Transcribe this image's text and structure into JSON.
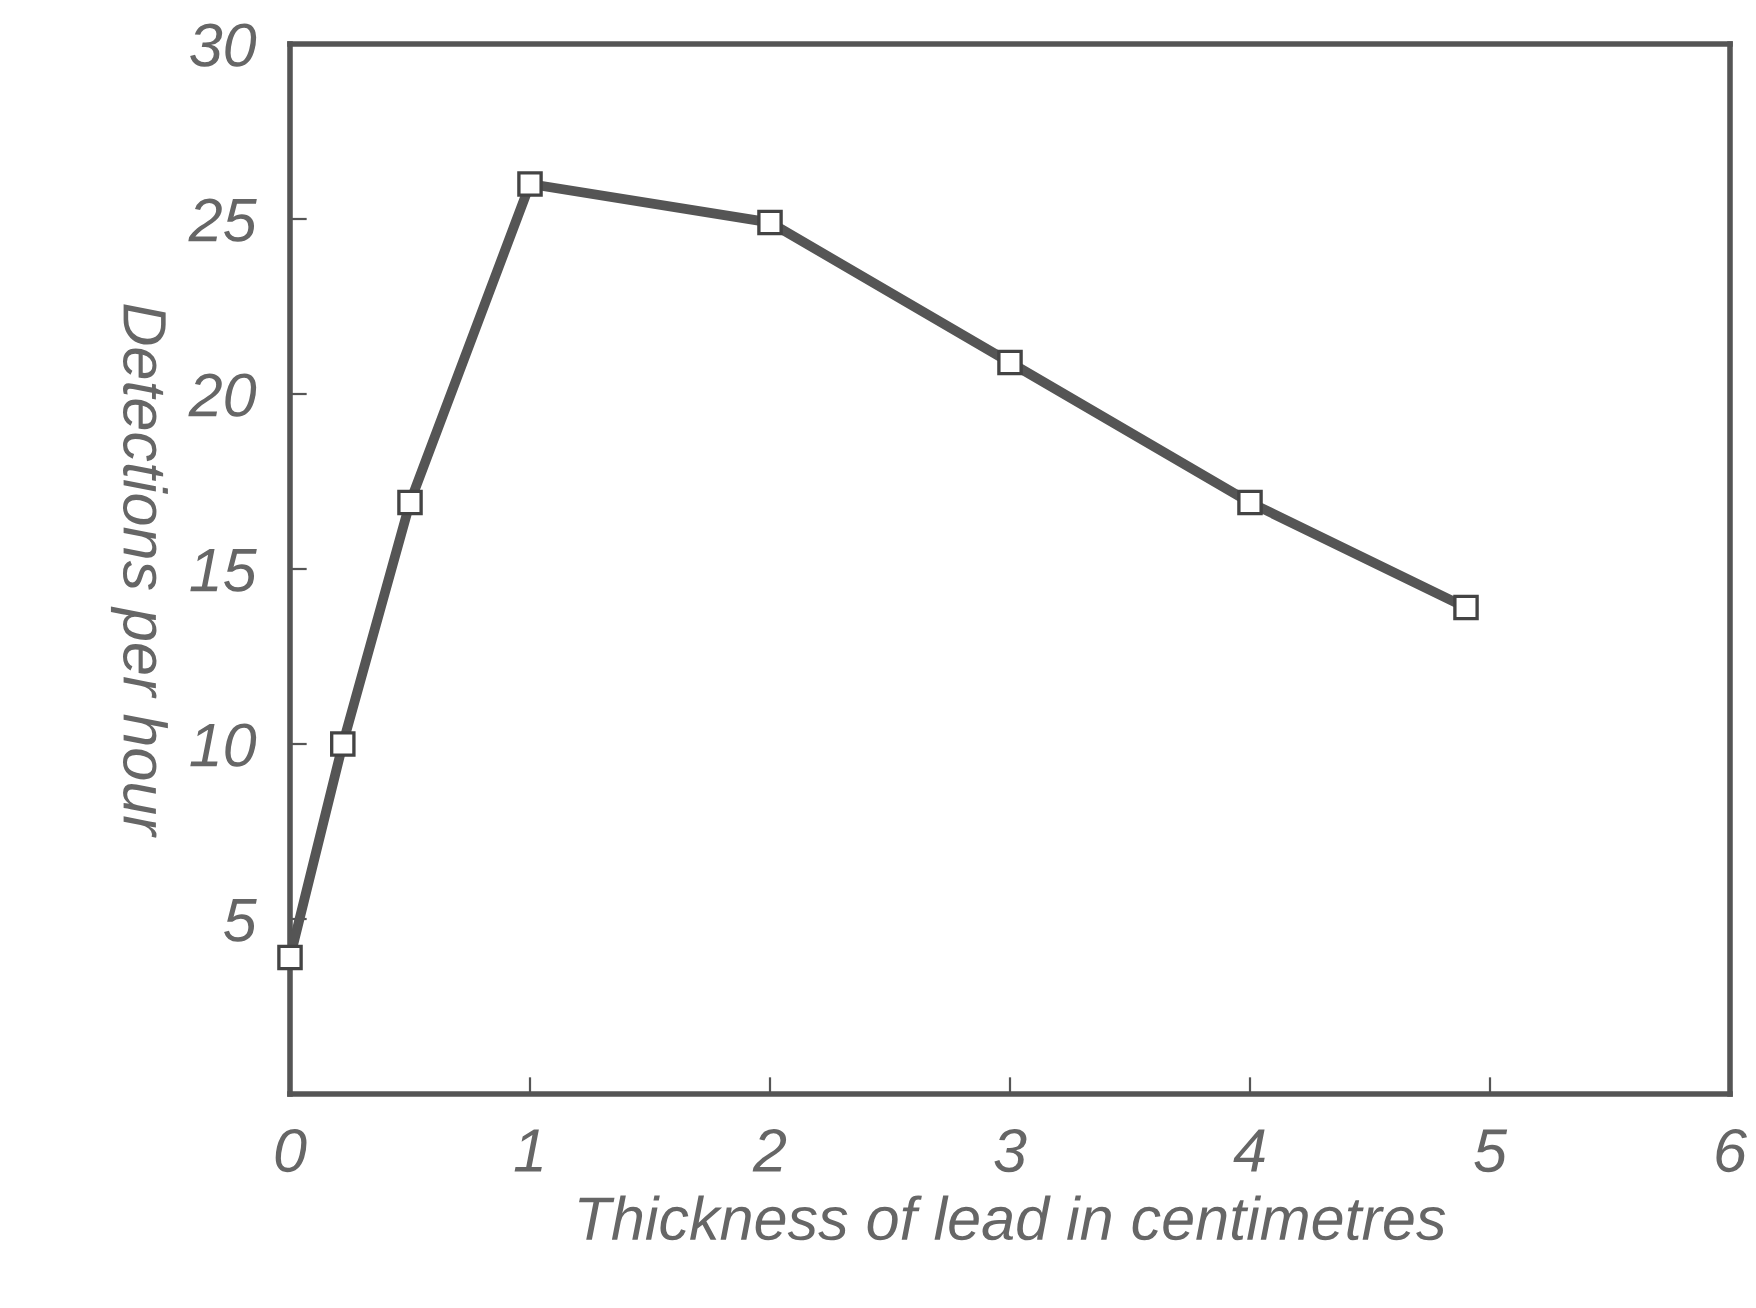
{
  "chart_data": {
    "type": "line",
    "xlabel": "Thickness of lead in centimetres",
    "ylabel": "Detections per hour",
    "x": [
      0,
      0.22,
      0.5,
      1,
      2,
      3,
      4,
      4.9
    ],
    "series": [
      {
        "color": "#555555",
        "values": [
          3.9,
          10.0,
          16.9,
          26.0,
          24.9,
          20.9,
          16.9,
          13.9
        ]
      }
    ],
    "marker": "square",
    "line_style": "solid",
    "xlim": [
      0,
      6
    ],
    "xticks": [
      0,
      1,
      2,
      3,
      4,
      5,
      6
    ],
    "ylim": [
      0,
      30
    ],
    "yticks": [
      {
        "value": 0,
        "label": null
      },
      5,
      10,
      15,
      20,
      25,
      30
    ],
    "grid": false
  }
}
